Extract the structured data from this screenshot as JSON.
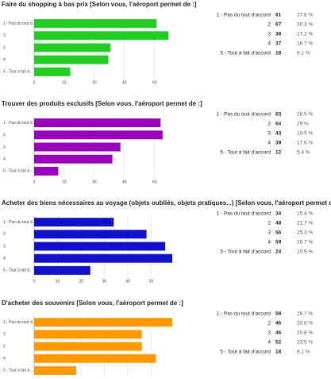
{
  "chart_data": [
    {
      "type": "bar",
      "orientation": "horizontal",
      "title": "Faire du shopping à bas prix [Selon vous, l'aéroport permet de :]",
      "categories": [
        "1 - Pas du tout d...",
        "2",
        "3",
        "4",
        "5 - Tout à fait d..."
      ],
      "values": [
        61,
        67,
        38,
        37,
        18
      ],
      "color": "#22cc22",
      "xlim": [
        0,
        70
      ],
      "xticks": [
        0,
        15,
        30,
        45,
        60
      ],
      "grid": true,
      "response_labels": [
        "1 - Pas du tout d'accord",
        "2",
        "3",
        "4",
        "5 - Tout à fait d'accord"
      ],
      "shares": [
        27.6,
        30.3,
        17.2,
        16.7,
        8.1
      ],
      "share_labels": [
        "27.6 %",
        "30.3 %",
        "17.2 %",
        "16.7 %",
        "8.1 %"
      ]
    },
    {
      "type": "bar",
      "orientation": "horizontal",
      "title": "Trouver des produits exclusifs [Selon vous, l'aéroport permet de :]",
      "categories": [
        "1 - Pas du tout d...",
        "2",
        "3",
        "4",
        "5 - Tout à fait d..."
      ],
      "values": [
        63,
        64,
        43,
        39,
        12
      ],
      "color": "#9900bb",
      "xlim": [
        0,
        70
      ],
      "xticks": [
        0,
        15,
        30,
        45,
        60
      ],
      "grid": true,
      "response_labels": [
        "1 - Pas du tout d'accord",
        "2",
        "3",
        "4",
        "5 - Tout à fait d'accord"
      ],
      "shares": [
        28.5,
        29,
        19.5,
        17.6,
        5.4
      ],
      "share_labels": [
        "28.5 %",
        "29 %",
        "19.5 %",
        "17.6 %",
        "5.4 %"
      ]
    },
    {
      "type": "bar",
      "orientation": "horizontal",
      "title": "Acheter des biens nécessaires au voyage (objets oubliés, objets pratiques...) [Selon vous, l'aéroport permet de :]",
      "categories": [
        "1 - Pas du tout d...",
        "2",
        "3",
        "4",
        "5 - Tout à fait d..."
      ],
      "values": [
        34,
        48,
        56,
        59,
        24
      ],
      "color": "#1111cc",
      "xlim": [
        0,
        60
      ],
      "xticks": [
        0,
        10,
        20,
        30,
        40,
        50
      ],
      "grid": true,
      "response_labels": [
        "1 - Pas du tout d'accord",
        "2",
        "3",
        "4",
        "5 - Tout à fait d'accord"
      ],
      "shares": [
        15.4,
        21.7,
        25.3,
        26.7,
        10.9
      ],
      "share_labels": [
        "15.4 %",
        "21.7 %",
        "25.3 %",
        "26.7 %",
        "10.9 %"
      ]
    },
    {
      "type": "bar",
      "orientation": "horizontal",
      "title": "D'acheter des souvenirs [Selon vous, l'aéroport permet de :]",
      "categories": [
        "1 - Pas du tout d...",
        "2",
        "3",
        "4",
        "5 - Tout à fait d..."
      ],
      "values": [
        59,
        46,
        46,
        52,
        18
      ],
      "color": "#ff9900",
      "xlim": [
        0,
        60
      ],
      "xticks": [
        0,
        10,
        20,
        30,
        40,
        50
      ],
      "grid": true,
      "response_labels": [
        "1 - Pas du tout d'accord",
        "2",
        "3",
        "4",
        "5 - Tout à fait d'accord"
      ],
      "shares": [
        26.7,
        20.8,
        20.8,
        23.5,
        8.1
      ],
      "share_labels": [
        "26.7 %",
        "20.8 %",
        "20.8 %",
        "23.5 %",
        "8.1 %"
      ]
    }
  ]
}
